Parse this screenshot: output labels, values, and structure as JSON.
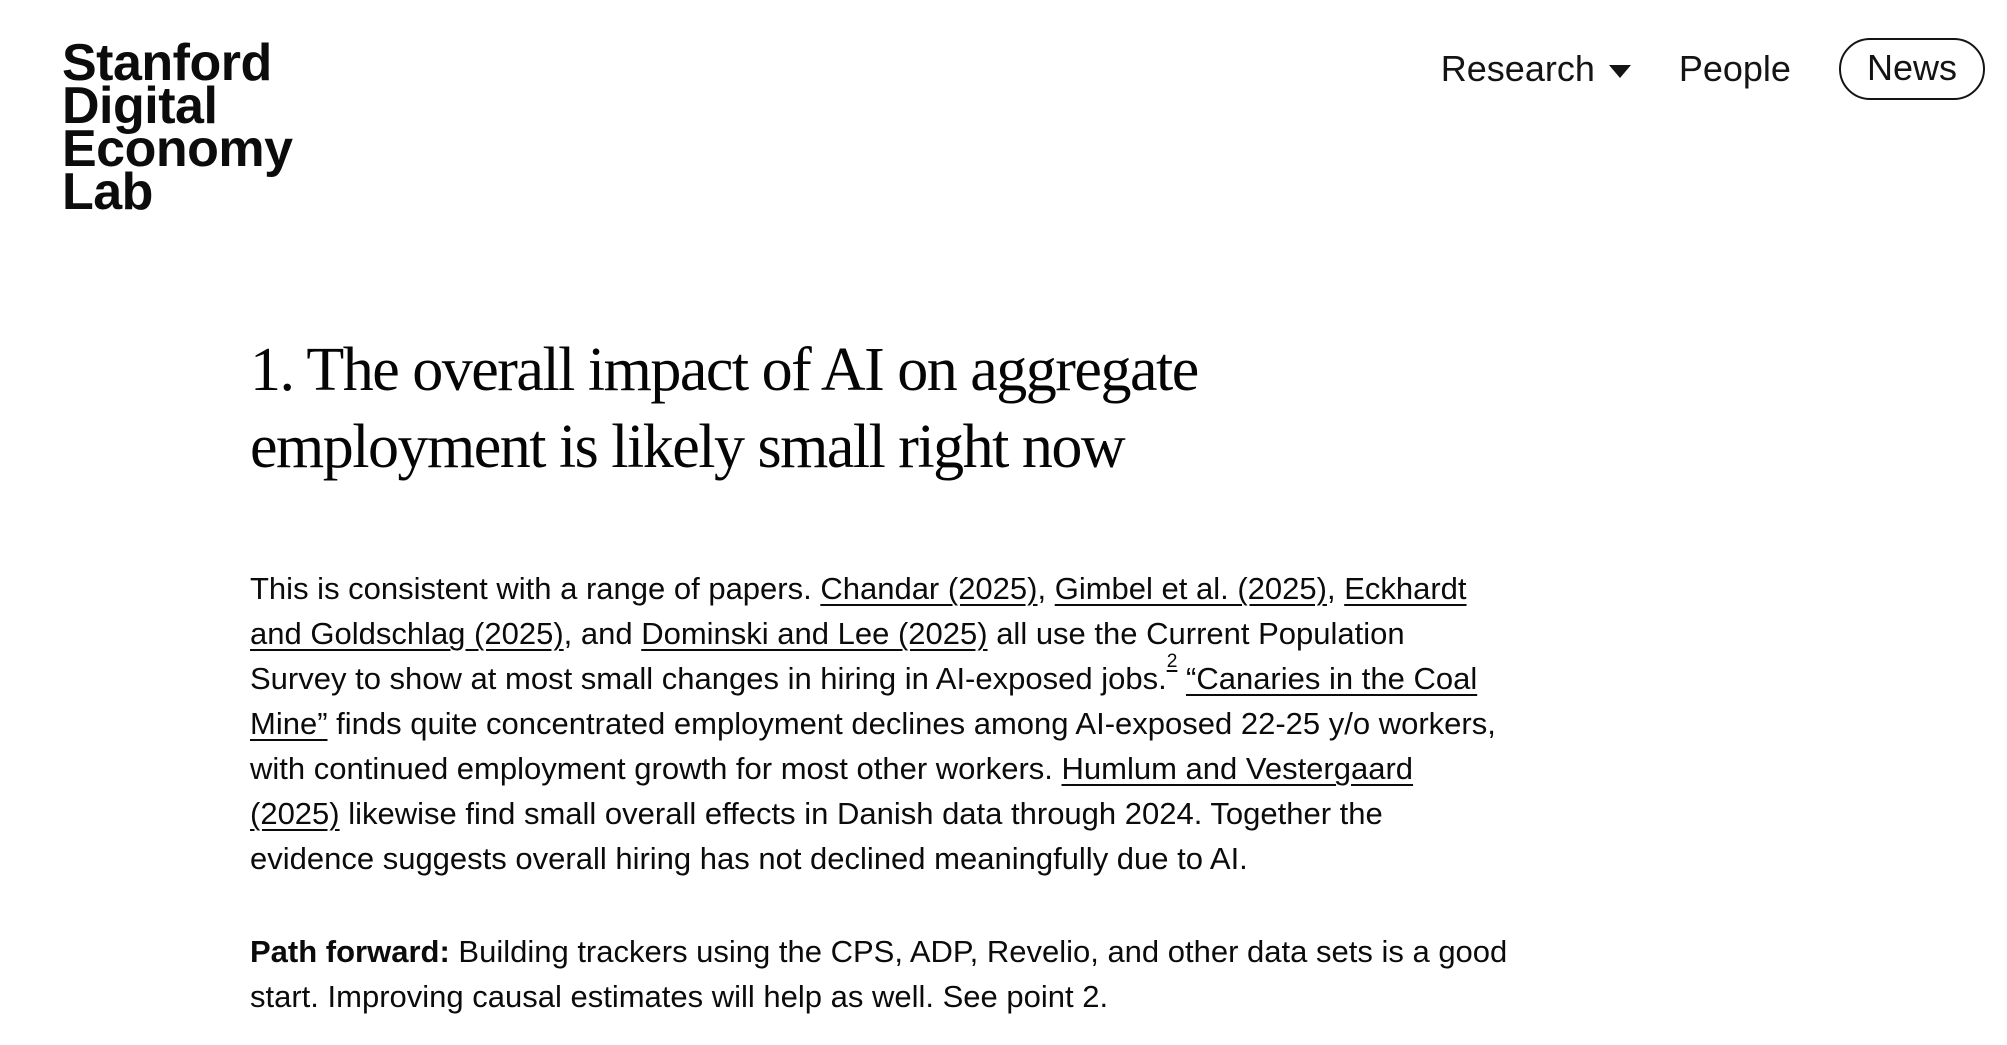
{
  "brand": {
    "logo_lines": [
      "Stanford",
      "Digital",
      "Economy",
      "Lab"
    ]
  },
  "nav": {
    "research_label": "Research",
    "people_label": "People",
    "news_label": "News"
  },
  "article": {
    "heading_lines": [
      "1. The overall impact of AI on aggregate",
      "employment is likely small right now"
    ],
    "paragraphs": [
      {
        "segments": [
          {
            "type": "text",
            "text": "This is consistent with a range of papers. "
          },
          {
            "type": "link",
            "text": "Chandar (2025)"
          },
          {
            "type": "text",
            "text": ", "
          },
          {
            "type": "link",
            "text": "Gimbel et al. (2025)"
          },
          {
            "type": "text",
            "text": ", "
          },
          {
            "type": "link",
            "text": "Eckhardt and Goldschlag (2025)"
          },
          {
            "type": "text",
            "text": ", and "
          },
          {
            "type": "link",
            "text": "Dominski and Lee (2025)"
          },
          {
            "type": "text",
            "text": " all use the Current Population Survey to show at most small changes in hiring in AI-exposed jobs."
          },
          {
            "type": "footnote",
            "text": "2"
          },
          {
            "type": "text",
            "text": " "
          },
          {
            "type": "link",
            "text": "“Canaries in the Coal Mine”"
          },
          {
            "type": "text",
            "text": " finds quite concentrated employment declines among AI-exposed 22-25 y/o workers, with continued employment growth for most other workers. "
          },
          {
            "type": "link",
            "text": "Humlum and Vestergaard (2025)"
          },
          {
            "type": "text",
            "text": " likewise find small overall effects in Danish data through 2024. Together the evidence suggests overall hiring has not declined meaningfully due to AI."
          }
        ]
      },
      {
        "segments": [
          {
            "type": "bold",
            "text": "Path forward:"
          },
          {
            "type": "text",
            "text": " Building trackers using the CPS, ADP, Revelio, and other data sets is a good start. Improving causal estimates will help as well. See point 2."
          }
        ]
      }
    ]
  },
  "colors": {
    "text": "#0b0b0b",
    "background": "#ffffff",
    "nav_text": "#141414",
    "link": "#0b0b0b"
  }
}
